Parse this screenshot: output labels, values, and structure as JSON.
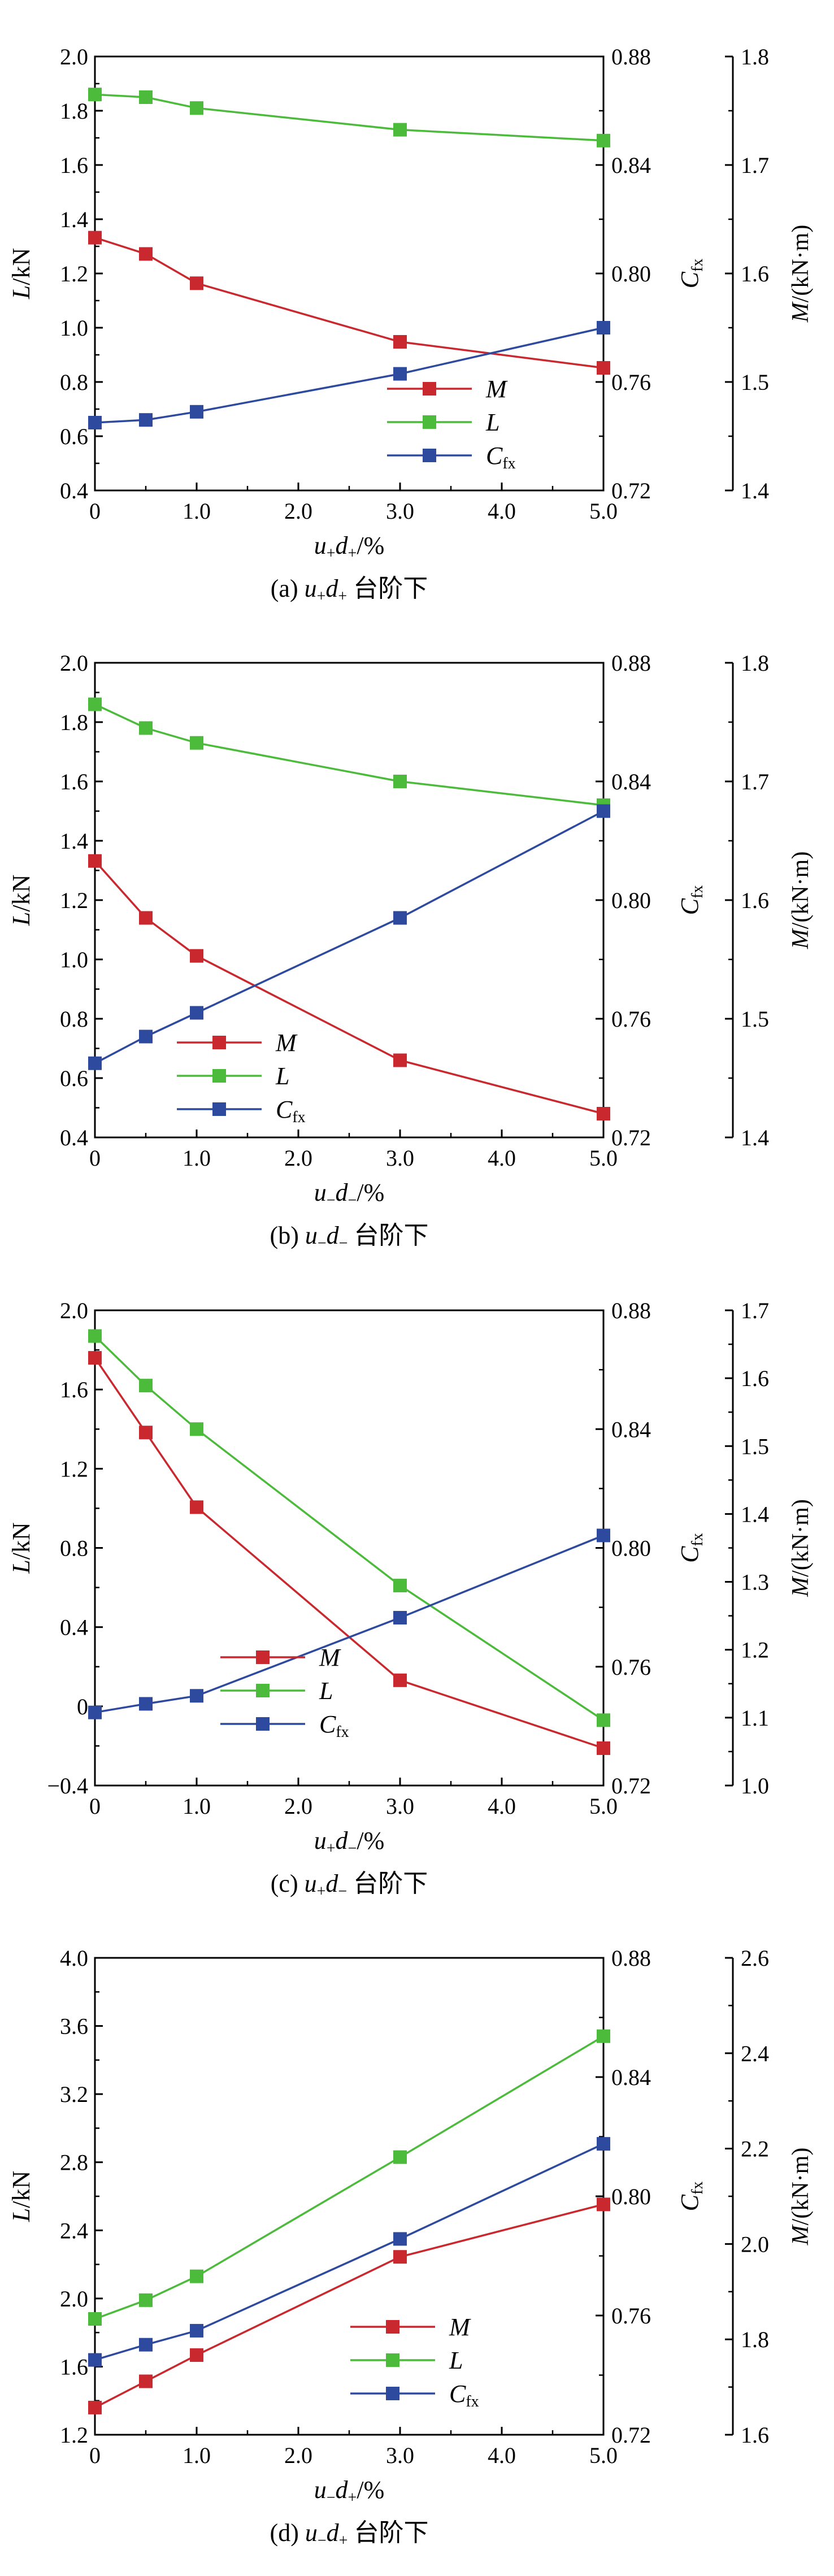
{
  "chart_data": [
    {
      "type": "line",
      "caption": "(a) u+d+ 台阶下",
      "caption_prefix": "(a) ",
      "caption_var": "u",
      "caption_sub1": "+",
      "caption_var2": "d",
      "caption_sub2": "+",
      "caption_suffix": " 台阶下",
      "x": [
        0,
        0.5,
        1.0,
        3.0,
        5.0
      ],
      "xlim": [
        0,
        5
      ],
      "xticks": [
        "0",
        "1.0",
        "2.0",
        "3.0",
        "4.0",
        "5.0"
      ],
      "xlabel": "u+d+/%",
      "xlabel_var": "u",
      "xlabel_sub1": "+",
      "xlabel_var2": "d",
      "xlabel_sub2": "+",
      "xlabel_unit": "/%",
      "left_axis": {
        "label": "L/kN",
        "label_var": "L",
        "label_unit": "/kN",
        "lim": [
          0.4,
          2.0
        ],
        "ticks": [
          "0.4",
          "0.6",
          "0.8",
          "1.0",
          "1.2",
          "1.4",
          "1.6",
          "1.8",
          "2.0"
        ]
      },
      "mid_axis": {
        "label": "Cfx",
        "label_var": "C",
        "label_sub": "fx",
        "lim": [
          0.72,
          0.88
        ],
        "ticks": [
          "0.72",
          "0.76",
          "0.80",
          "0.84",
          "0.88"
        ]
      },
      "right_axis": {
        "label": "M/(kN·m)",
        "label_var": "M",
        "label_unit": "/(kN·m)",
        "lim": [
          1.4,
          1.8
        ],
        "ticks": [
          "1.4",
          "1.5",
          "1.6",
          "1.7",
          "1.8"
        ]
      },
      "series": [
        {
          "name": "M",
          "axis": "right",
          "color": "#c8282e",
          "values": [
            1.633,
            1.618,
            1.591,
            1.537,
            1.513
          ]
        },
        {
          "name": "L",
          "axis": "left",
          "color": "#4cbb3c",
          "values": [
            1.86,
            1.85,
            1.81,
            1.73,
            1.69
          ]
        },
        {
          "name": "Cfx",
          "axis": "mid",
          "color": "#2e4a9e",
          "values": [
            0.745,
            0.746,
            0.749,
            0.763,
            0.78
          ]
        }
      ],
      "legend_position": "lower-right"
    },
    {
      "type": "line",
      "caption": "(b) u−d− 台阶下",
      "caption_prefix": "(b) ",
      "caption_var": "u",
      "caption_sub1": "−",
      "caption_var2": "d",
      "caption_sub2": "−",
      "caption_suffix": " 台阶下",
      "x": [
        0,
        0.5,
        1.0,
        3.0,
        5.0
      ],
      "xlim": [
        0,
        5
      ],
      "xticks": [
        "0",
        "1.0",
        "2.0",
        "3.0",
        "4.0",
        "5.0"
      ],
      "xlabel": "u−d−/%",
      "xlabel_var": "u",
      "xlabel_sub1": "−",
      "xlabel_var2": "d",
      "xlabel_sub2": "−",
      "xlabel_unit": "/%",
      "left_axis": {
        "label": "L/kN",
        "label_var": "L",
        "label_unit": "/kN",
        "lim": [
          0.4,
          2.0
        ],
        "ticks": [
          "0.4",
          "0.6",
          "0.8",
          "1.0",
          "1.2",
          "1.4",
          "1.6",
          "1.8",
          "2.0"
        ]
      },
      "mid_axis": {
        "label": "Cfx",
        "label_var": "C",
        "label_sub": "fx",
        "lim": [
          0.72,
          0.88
        ],
        "ticks": [
          "0.72",
          "0.76",
          "0.80",
          "0.84",
          "0.88"
        ]
      },
      "right_axis": {
        "label": "M/(kN·m)",
        "label_var": "M",
        "label_unit": "/(kN·m)",
        "lim": [
          1.4,
          1.8
        ],
        "ticks": [
          "1.4",
          "1.5",
          "1.6",
          "1.7",
          "1.8"
        ]
      },
      "series": [
        {
          "name": "M",
          "axis": "right",
          "color": "#c8282e",
          "values": [
            1.633,
            1.585,
            1.553,
            1.465,
            1.42
          ]
        },
        {
          "name": "L",
          "axis": "left",
          "color": "#4cbb3c",
          "values": [
            1.86,
            1.78,
            1.73,
            1.6,
            1.52
          ]
        },
        {
          "name": "Cfx",
          "axis": "mid",
          "color": "#2e4a9e",
          "values": [
            0.745,
            0.754,
            0.762,
            0.794,
            0.83
          ]
        }
      ],
      "legend_position": "lower-left"
    },
    {
      "type": "line",
      "caption": "(c) u+d− 台阶下",
      "caption_prefix": "(c) ",
      "caption_var": "u",
      "caption_sub1": "+",
      "caption_var2": "d",
      "caption_sub2": "−",
      "caption_suffix": " 台阶下",
      "x": [
        0,
        0.5,
        1.0,
        3.0,
        5.0
      ],
      "xlim": [
        0,
        5
      ],
      "xticks": [
        "0",
        "1.0",
        "2.0",
        "3.0",
        "4.0",
        "5.0"
      ],
      "xlabel": "u+d−/%",
      "xlabel_var": "u",
      "xlabel_sub1": "+",
      "xlabel_var2": "d",
      "xlabel_sub2": "−",
      "xlabel_unit": "/%",
      "left_axis": {
        "label": "L/kN",
        "label_var": "L",
        "label_unit": "/kN",
        "lim": [
          -0.4,
          2.0
        ],
        "ticks": [
          "−0.4",
          "0",
          "0.4",
          "0.8",
          "1.2",
          "1.6",
          "2.0"
        ]
      },
      "mid_axis": {
        "label": "Cfx",
        "label_var": "C",
        "label_sub": "fx",
        "lim": [
          0.72,
          0.88
        ],
        "ticks": [
          "0.72",
          "0.76",
          "0.80",
          "0.84",
          "0.88"
        ]
      },
      "right_axis": {
        "label": "M/(kN·m)",
        "label_var": "M",
        "label_unit": "/(kN·m)",
        "lim": [
          1.0,
          1.7
        ],
        "ticks": [
          "1.0",
          "1.1",
          "1.2",
          "1.3",
          "1.4",
          "1.5",
          "1.6",
          "1.7"
        ]
      },
      "series": [
        {
          "name": "M",
          "axis": "right",
          "color": "#c8282e",
          "values": [
            1.63,
            1.52,
            1.41,
            1.155,
            1.055
          ]
        },
        {
          "name": "L",
          "axis": "left",
          "color": "#4cbb3c",
          "values": [
            1.87,
            1.62,
            1.4,
            0.61,
            -0.07
          ]
        },
        {
          "name": "Cfx",
          "axis": "mid",
          "color": "#2e4a9e",
          "values": [
            0.7446,
            0.7475,
            0.7502,
            0.7765,
            0.8042
          ]
        }
      ],
      "legend_position": "lower-center"
    },
    {
      "type": "line",
      "caption": "(d) u−d+ 台阶下",
      "caption_prefix": "(d) ",
      "caption_var": "u",
      "caption_sub1": "−",
      "caption_var2": "d",
      "caption_sub2": "+",
      "caption_suffix": " 台阶下",
      "x": [
        0,
        0.5,
        1.0,
        3.0,
        5.0
      ],
      "xlim": [
        0,
        5
      ],
      "xticks": [
        "0",
        "1.0",
        "2.0",
        "3.0",
        "4.0",
        "5.0"
      ],
      "xlabel": "u−d+/%",
      "xlabel_var": "u",
      "xlabel_sub1": "−",
      "xlabel_var2": "d",
      "xlabel_sub2": "+",
      "xlabel_unit": "/%",
      "left_axis": {
        "label": "L/kN",
        "label_var": "L",
        "label_unit": "/kN",
        "lim": [
          1.2,
          4.0
        ],
        "ticks": [
          "1.2",
          "1.6",
          "2.0",
          "2.4",
          "2.8",
          "3.2",
          "3.6",
          "4.0"
        ]
      },
      "mid_axis": {
        "label": "Cfx",
        "label_var": "C",
        "label_sub": "fx",
        "lim": [
          0.72,
          0.88
        ],
        "ticks": [
          "0.72",
          "0.76",
          "0.80",
          "0.84",
          "0.88"
        ]
      },
      "right_axis": {
        "label": "M/(kN·m)",
        "label_var": "M",
        "label_unit": "/(kN·m)",
        "lim": [
          1.6,
          2.6
        ],
        "ticks": [
          "1.6",
          "1.8",
          "2.0",
          "2.2",
          "2.4",
          "2.6"
        ]
      },
      "series": [
        {
          "name": "M",
          "axis": "right",
          "color": "#c8282e",
          "values": [
            1.657,
            1.712,
            1.767,
            1.973,
            2.083
          ]
        },
        {
          "name": "L",
          "axis": "left",
          "color": "#4cbb3c",
          "values": [
            1.88,
            1.99,
            2.13,
            2.83,
            3.54
          ]
        },
        {
          "name": "Cfx",
          "axis": "mid",
          "color": "#2e4a9e",
          "values": [
            0.7451,
            0.7502,
            0.7549,
            0.7857,
            0.8176
          ]
        }
      ],
      "legend_position": "lower-right"
    }
  ]
}
